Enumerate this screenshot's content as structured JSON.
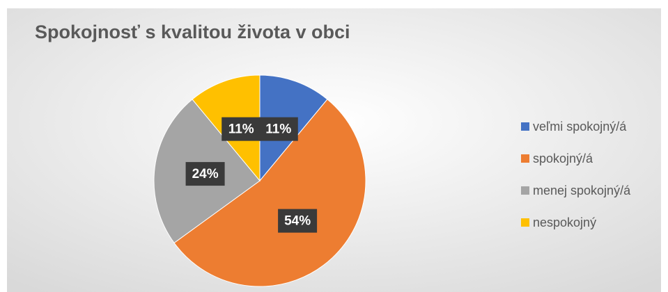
{
  "chart_data": {
    "type": "pie",
    "title": "Spokojnosť s kvalitou života v obci",
    "categories": [
      "veľmi spokojný/á",
      "spokojný/á",
      "menej spokojný/á",
      "nespokojný"
    ],
    "values": [
      11,
      54,
      24,
      11
    ],
    "value_labels": [
      "11%",
      "54%",
      "24%",
      "11%"
    ],
    "colors": [
      "#4472c4",
      "#ed7d31",
      "#a5a5a5",
      "#ffc000"
    ],
    "legend": "right"
  }
}
